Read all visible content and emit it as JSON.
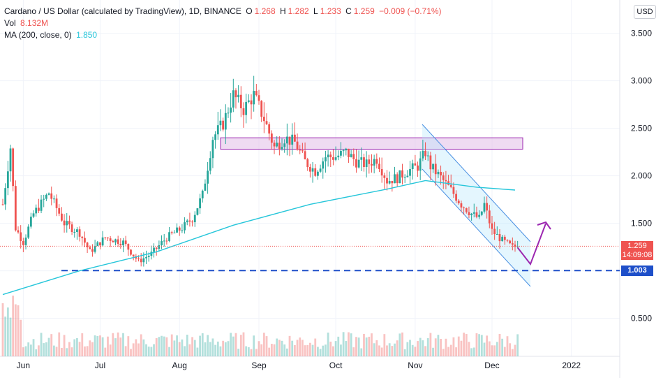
{
  "legend": {
    "symbol": "Cardano / US Dollar (calculated by TradingView), 1D, BINANCE",
    "open_label": "O",
    "open": "1.268",
    "high_label": "H",
    "high": "1.282",
    "low_label": "L",
    "low": "1.233",
    "close_label": "C",
    "close": "1.259",
    "change": "−0.009 (−0.71%)",
    "vol_label": "Vol",
    "vol": "8.132M",
    "ma_label": "MA (200, close, 0)",
    "ma": "1.850"
  },
  "price_scale": {
    "currency_button": "USD"
  },
  "tags": {
    "last_price": "1.259",
    "countdown": "14:09:08",
    "support": "1.003"
  },
  "colors": {
    "up": "#26a69a",
    "down": "#ef5350",
    "ma": "#26c6da",
    "support": "#1e4fc9",
    "resistance": "#9c27b0",
    "channel": "#4a90e2",
    "arrow": "#9c27b0"
  },
  "chart_data": {
    "type": "candlestick",
    "ylim": [
      0.1,
      3.85
    ],
    "yticks": [
      "0.500",
      "1.000",
      "1.500",
      "2.000",
      "2.500",
      "3.000",
      "3.500"
    ],
    "ytick_values": [
      0.5,
      1.0,
      1.5,
      2.0,
      2.5,
      3.0,
      3.5
    ],
    "xticks": [
      "Jun",
      "Jul",
      "Aug",
      "Sep",
      "Oct",
      "Nov",
      "Dec",
      "2022"
    ],
    "xtick_days": [
      8,
      38,
      69,
      100,
      130,
      161,
      191,
      222
    ],
    "x_start": "2021-05-25",
    "ma200": [
      [
        0,
        0.75
      ],
      [
        30,
        1.0
      ],
      [
        60,
        1.2
      ],
      [
        90,
        1.48
      ],
      [
        120,
        1.7
      ],
      [
        150,
        1.86
      ],
      [
        165,
        1.95
      ],
      [
        185,
        1.88
      ],
      [
        200,
        1.85
      ]
    ],
    "anchors": [
      [
        0,
        1.7
      ],
      [
        3,
        2.3
      ],
      [
        5,
        1.45
      ],
      [
        8,
        1.3
      ],
      [
        12,
        1.6
      ],
      [
        18,
        1.82
      ],
      [
        24,
        1.5
      ],
      [
        30,
        1.4
      ],
      [
        34,
        1.2
      ],
      [
        40,
        1.35
      ],
      [
        47,
        1.3
      ],
      [
        53,
        1.1
      ],
      [
        58,
        1.18
      ],
      [
        64,
        1.35
      ],
      [
        70,
        1.45
      ],
      [
        74,
        1.55
      ],
      [
        78,
        1.8
      ],
      [
        82,
        2.4
      ],
      [
        86,
        2.55
      ],
      [
        90,
        2.85
      ],
      [
        94,
        2.7
      ],
      [
        98,
        2.85
      ],
      [
        102,
        2.6
      ],
      [
        106,
        2.3
      ],
      [
        110,
        2.4
      ],
      [
        114,
        2.35
      ],
      [
        118,
        2.15
      ],
      [
        122,
        2.05
      ],
      [
        126,
        2.2
      ],
      [
        130,
        2.2
      ],
      [
        134,
        2.25
      ],
      [
        138,
        2.15
      ],
      [
        142,
        2.12
      ],
      [
        146,
        2.18
      ],
      [
        150,
        1.95
      ],
      [
        154,
        1.98
      ],
      [
        158,
        2.05
      ],
      [
        162,
        2.1
      ],
      [
        165,
        2.25
      ],
      [
        167,
        2.1
      ],
      [
        171,
        1.98
      ],
      [
        175,
        1.85
      ],
      [
        179,
        1.7
      ],
      [
        183,
        1.6
      ],
      [
        186,
        1.55
      ],
      [
        188,
        1.7
      ],
      [
        191,
        1.42
      ],
      [
        195,
        1.32
      ],
      [
        199,
        1.25
      ],
      [
        201,
        1.259
      ]
    ],
    "annotations": {
      "resistance_zone": [
        2.28,
        2.4
      ],
      "support_level": 1.003,
      "last_price": 1.259
    }
  }
}
